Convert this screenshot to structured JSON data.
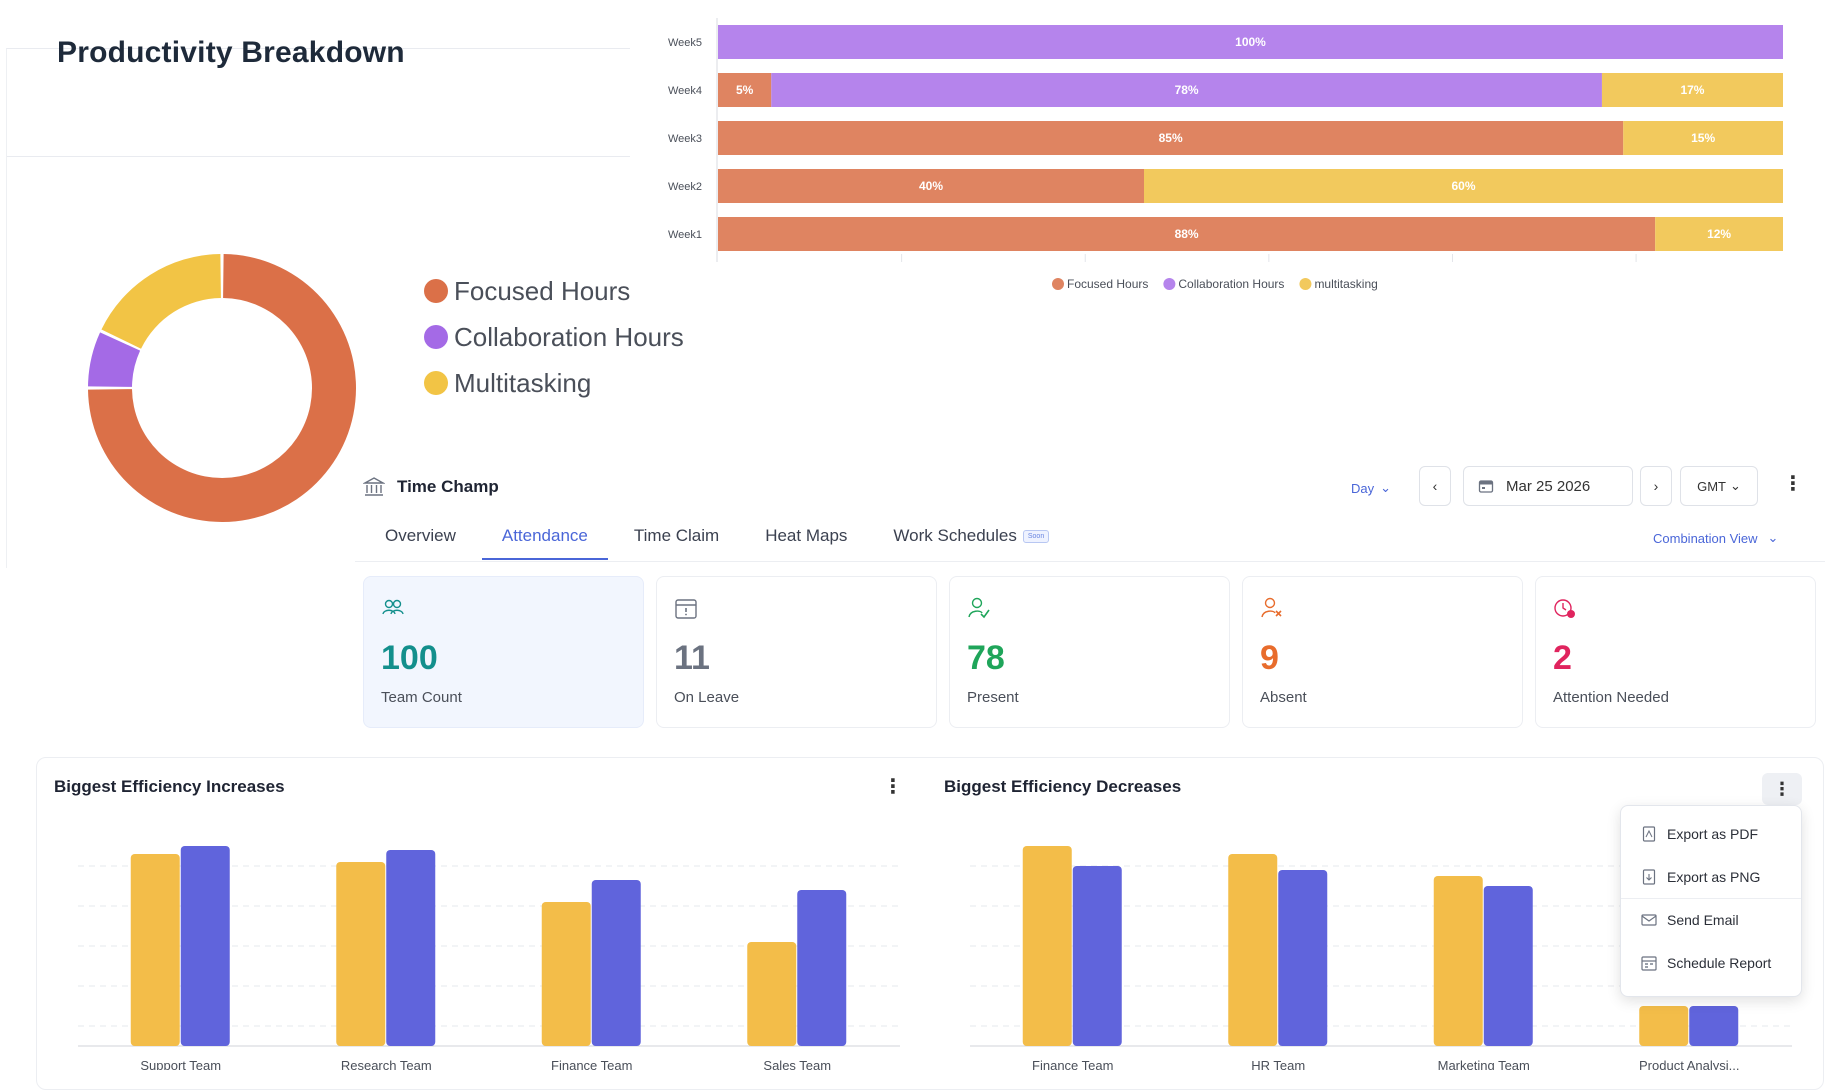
{
  "productivity": {
    "title": "Productivity Breakdown",
    "legend": [
      {
        "label": "Focused Hours",
        "color": "#db7048"
      },
      {
        "label": "Collaboration Hours",
        "color": "#a46ae6"
      },
      {
        "label": "Multitasking",
        "color": "#f2c445"
      }
    ]
  },
  "chart_data": [
    {
      "type": "pie",
      "slices": [
        {
          "label": "Focused Hours",
          "value": 75,
          "color": "#db7048"
        },
        {
          "label": "Collaboration Hours",
          "value": 7,
          "color": "#a46ae6"
        },
        {
          "label": "Multitasking",
          "value": 18,
          "color": "#f2c445"
        }
      ],
      "donut": true
    },
    {
      "type": "bar",
      "orientation": "horizontal",
      "stacked": true,
      "categories": [
        "Week5",
        "Week4",
        "Week3",
        "Week2",
        "Week1"
      ],
      "series": [
        {
          "name": "Focused Hours",
          "color": "#df8461",
          "values": [
            0,
            5,
            85,
            40,
            88
          ]
        },
        {
          "name": "Collaboration Hours",
          "color": "#b584ec",
          "values": [
            100,
            78,
            0,
            0,
            0
          ]
        },
        {
          "name": "multitasking",
          "color": "#f2c95d",
          "values": [
            0,
            17,
            15,
            60,
            12
          ]
        }
      ],
      "legend": "bottom",
      "xlim": [
        0,
        100
      ]
    },
    {
      "type": "bar",
      "title": "Biggest Efficiency Increases",
      "categories": [
        "Support Team",
        "Research Team",
        "Finance Team",
        "Sales Team"
      ],
      "series": [
        {
          "color": "#f3bd49",
          "values": [
            96,
            92,
            72,
            52
          ]
        },
        {
          "color": "#6064dc",
          "values": [
            100,
            98,
            83,
            78
          ]
        }
      ],
      "ylim": [
        0,
        100
      ],
      "grid": true
    },
    {
      "type": "bar",
      "title": "Biggest Efficiency Decreases",
      "categories": [
        "Finance Team",
        "HR Team",
        "Marketing Team",
        "Product Analysi..."
      ],
      "series": [
        {
          "color": "#f3bd49",
          "values": [
            100,
            96,
            85,
            20
          ]
        },
        {
          "color": "#6064dc",
          "values": [
            90,
            88,
            80,
            20
          ]
        }
      ],
      "ylim": [
        0,
        100
      ],
      "grid": true
    }
  ],
  "timechamp": {
    "app_title": "Time Champ",
    "day_selector": "Day",
    "date": "Mar 25 2026",
    "timezone": "GMT",
    "combination_view": "Combination View",
    "tabs": [
      {
        "label": "Overview",
        "active": false
      },
      {
        "label": "Attendance",
        "active": true
      },
      {
        "label": "Time Claim",
        "active": false
      },
      {
        "label": "Heat Maps",
        "active": false
      },
      {
        "label": "Work Schedules",
        "active": false,
        "badge": "Soon"
      }
    ],
    "stats": [
      {
        "value": "100",
        "label": "Team Count",
        "color": "#138f8c",
        "icon": "team-icon"
      },
      {
        "value": "11",
        "label": "On Leave",
        "color": "#6b7280",
        "icon": "calendar-icon"
      },
      {
        "value": "78",
        "label": "Present",
        "color": "#1fa55a",
        "icon": "user-check-icon"
      },
      {
        "value": "9",
        "label": "Absent",
        "color": "#e86c2c",
        "icon": "user-x-icon"
      },
      {
        "value": "2",
        "label": "Attention Needed",
        "color": "#e0245e",
        "icon": "clock-alert-icon"
      }
    ]
  },
  "efficiency": {
    "increases_title": "Biggest Efficiency Increases",
    "decreases_title": "Biggest Efficiency Decreases"
  },
  "export_menu": {
    "items": [
      "Export as PDF",
      "Export as PNG",
      "Send Email",
      "Schedule Report"
    ]
  }
}
